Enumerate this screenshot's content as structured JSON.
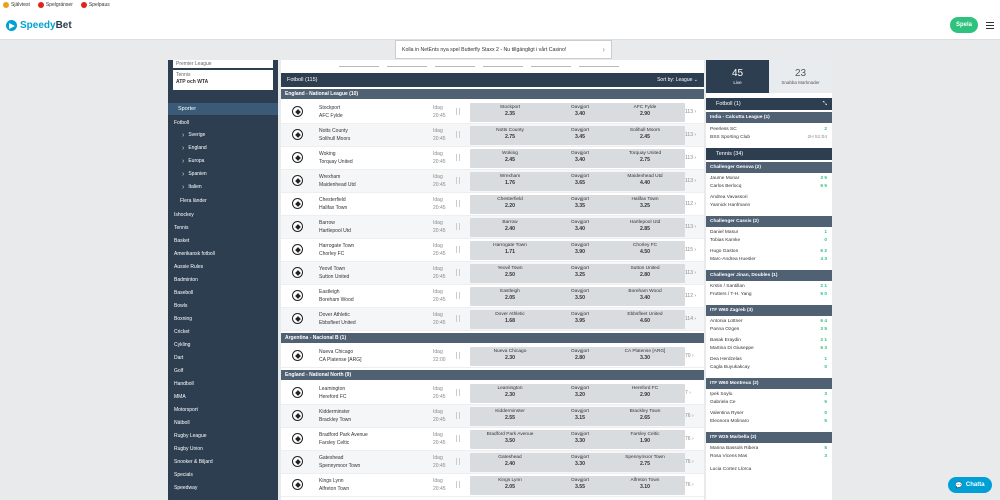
{
  "topbar": {
    "items": [
      {
        "label": "Självtest",
        "color": "#e8a317"
      },
      {
        "label": "Spelgränser",
        "color": "#e2231a"
      },
      {
        "label": "Spelpaus",
        "color": "#e2231a"
      }
    ]
  },
  "brand": {
    "name_a": "Speedy",
    "name_b": "Bet",
    "accent": "#00a0d6"
  },
  "header": {
    "play_label": "Spela"
  },
  "promo": {
    "text": "Kolla in NetEnts nya spel Butterfly Staxx 2 - Nu tillgängligt i vårt Casino!"
  },
  "sidebar": {
    "top_box": "Premier League",
    "tennis_box": {
      "title": "Tennis",
      "subtitle": "ATP och WTA"
    },
    "section": "Sporter",
    "football": "Fotboll",
    "football_sub": [
      "Sverige",
      "England",
      "Europa",
      "Spanien",
      "Italien"
    ],
    "more_countries": "Flera länder",
    "sports": [
      "Ishockey",
      "Tennis",
      "Basket",
      "Amerikansk fotboll",
      "Aussie Rules",
      "Badminton",
      "Baseboll",
      "Bowls",
      "Boxning",
      "Cricket",
      "Cykling",
      "Dart",
      "Golf",
      "Handboll",
      "MMA",
      "Motorsport",
      "Nätboll",
      "Rugby League",
      "Rugby Union",
      "Snooker & Biljard",
      "Specials",
      "Speedway"
    ]
  },
  "main": {
    "section_title": "Fotboll (115)",
    "sort_label": "Sort by:",
    "sort_value": "League",
    "draw_label": "Oavgjort",
    "leagues": [
      {
        "name": "England - National League (10)",
        "matches": [
          {
            "home": "Stockport",
            "away": "AFC Fylde",
            "date": "Idag",
            "time": "20:45",
            "h": "2.35",
            "d": "3.40",
            "a": "2.90",
            "more": "113"
          },
          {
            "home": "Notts County",
            "away": "Solihull Moors",
            "date": "Idag",
            "time": "20:45",
            "h": "2.75",
            "d": "3.45",
            "a": "2.45",
            "more": "113"
          },
          {
            "home": "Woking",
            "away": "Torquay United",
            "date": "Idag",
            "time": "20:45",
            "h": "2.45",
            "d": "3.40",
            "a": "2.75",
            "more": "113"
          },
          {
            "home": "Wrexham",
            "away": "Maidenhead Utd",
            "date": "Idag",
            "time": "20:45",
            "h": "1.76",
            "d": "3.65",
            "a": "4.40",
            "more": "113"
          },
          {
            "home": "Chesterfield",
            "away": "Halifax Town",
            "date": "Idag",
            "time": "20:45",
            "h": "2.20",
            "d": "3.35",
            "a": "3.25",
            "more": "112"
          },
          {
            "home": "Barrow",
            "away": "Hartlepool Utd",
            "date": "Idag",
            "time": "20:45",
            "h": "2.40",
            "d": "3.40",
            "a": "2.85",
            "more": "113"
          },
          {
            "home": "Harrogate Town",
            "away": "Chorley FC",
            "date": "Idag",
            "time": "20:45",
            "h": "1.71",
            "d": "3.90",
            "a": "4.50",
            "more": "115"
          },
          {
            "home": "Yeovil Town",
            "away": "Sutton United",
            "date": "Idag",
            "time": "20:45",
            "h": "2.50",
            "d": "3.25",
            "a": "2.80",
            "more": "113"
          },
          {
            "home": "Eastleigh",
            "away": "Boreham Wood",
            "date": "Idag",
            "time": "20:45",
            "h": "2.05",
            "d": "3.50",
            "a": "3.40",
            "more": "112"
          },
          {
            "home": "Dover Athletic",
            "away": "Ebbsfleet United",
            "date": "Idag",
            "time": "20:45",
            "h": "1.68",
            "d": "3.95",
            "a": "4.60",
            "more": "114"
          }
        ]
      },
      {
        "name": "Argentina - Nacional B (1)",
        "matches": [
          {
            "home": "Nueva Chicago",
            "away": "CA Platense [ARG]",
            "date": "Idag",
            "time": "22:00",
            "h": "2.30",
            "d": "2.80",
            "a": "3.30",
            "more": "70"
          }
        ]
      },
      {
        "name": "England - National North (9)",
        "matches": [
          {
            "home": "Leamington",
            "away": "Hereford FC",
            "date": "Idag",
            "time": "20:45",
            "h": "2.30",
            "d": "3.20",
            "a": "2.90",
            "more": "7"
          },
          {
            "home": "Kidderminster",
            "away": "Brackley Town",
            "date": "Idag",
            "time": "20:45",
            "h": "2.55",
            "d": "3.15",
            "a": "2.65",
            "more": "76"
          },
          {
            "home": "Bradford Park Avenue",
            "away": "Farsley Celtic",
            "date": "Idag",
            "time": "20:45",
            "h": "3.50",
            "d": "3.30",
            "a": "1.90",
            "more": "76"
          },
          {
            "home": "Gateshead",
            "away": "Spennymoor Town",
            "date": "Idag",
            "time": "20:45",
            "h": "2.40",
            "d": "3.30",
            "a": "2.75",
            "more": "76"
          },
          {
            "home": "Kings Lynn",
            "away": "Alfreton Town",
            "date": "Idag",
            "time": "20:45",
            "h": "2.05",
            "d": "3.55",
            "a": "3.10",
            "more": "76"
          }
        ]
      }
    ]
  },
  "right": {
    "live_count": "45",
    "live_label": "Live",
    "soon_count": "23",
    "soon_label": "Snabba Marknader",
    "football_header": "Fotboll (1)",
    "fb_league": "India - Calcutta League (1)",
    "fb_match": {
      "home": "Peerless SC",
      "away": "BSS Sporting Club",
      "score_h": "2",
      "score_a": "0",
      "clock": "2H 51:04"
    },
    "tennis_header": "Tennis (34)",
    "groups": [
      {
        "league": "Challenger Genova (2)",
        "pairs": [
          {
            "a": "Jaume Munar",
            "b": "Carlos Berlocq",
            "sa": "3  5",
            "sb": "6  5"
          },
          {
            "a": "Andrea Vavassori",
            "b": "Yannick Hanfmann",
            "sa": "",
            "sb": ""
          }
        ]
      },
      {
        "league": "Challenger Cassis (2)",
        "pairs": [
          {
            "a": "Daniel Masur",
            "b": "Tobias Kamke",
            "sa": "1",
            "sb": "0"
          },
          {
            "a": "Hugo Gaston",
            "b": "Marc-Andrea Huesler",
            "sa": "6  2",
            "sb": "4  3"
          }
        ]
      },
      {
        "league": "Challenger Jinan, Doubles (1)",
        "pairs": [
          {
            "a": "Krstin / Santillan",
            "b": "Frutters / T-H. Yang",
            "sa": "2  1",
            "sb": "5  0"
          }
        ]
      },
      {
        "league": "ITF W60 Zagreb (3)",
        "pairs": [
          {
            "a": "Antonia Lottner",
            "b": "Panna Ozgen",
            "sa": "6  4",
            "sb": "3  5"
          },
          {
            "a": "Basak Eraydin",
            "b": "Martina Di Giuseppe",
            "sa": "2  1",
            "sb": "6  3"
          },
          {
            "a": "Dea Herdzelas",
            "b": "Cagla Buyukakcay",
            "sa": "1",
            "sb": "0"
          }
        ]
      },
      {
        "league": "ITF W60 Montreux (2)",
        "pairs": [
          {
            "a": "Ipek Soylu",
            "b": "Gabriela Ce",
            "sa": "3",
            "sb": "5"
          },
          {
            "a": "Valentina Ryser",
            "b": "Eleonora Molinaro",
            "sa": "0",
            "sb": "5"
          }
        ]
      },
      {
        "league": "ITF W25 Marbella (2)",
        "pairs": [
          {
            "a": "Marina Bassols Ribera",
            "b": "Rosa Vicens Mas",
            "sa": "5",
            "sb": "3"
          }
        ]
      }
    ],
    "tail": "Lucia Cortez Llorca"
  },
  "chat": {
    "label": "Chatta"
  }
}
